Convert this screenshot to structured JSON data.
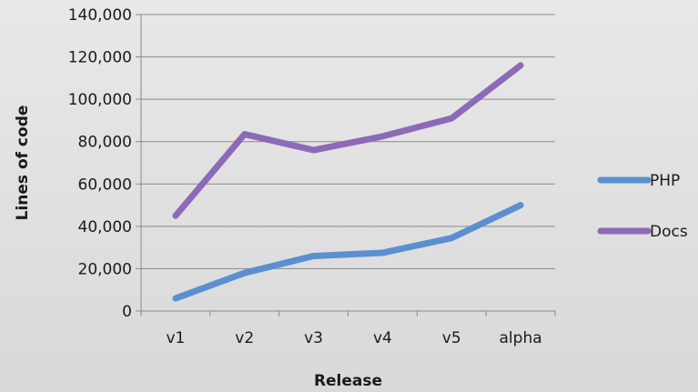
{
  "chart_data": {
    "type": "line",
    "title": "",
    "xlabel": "Release",
    "ylabel": "Lines of code",
    "categories": [
      "v1",
      "v2",
      "v3",
      "v4",
      "v5",
      "alpha"
    ],
    "ylim": [
      0,
      140000
    ],
    "yticks": [
      0,
      20000,
      40000,
      60000,
      80000,
      100000,
      120000,
      140000
    ],
    "ytick_labels": [
      "0",
      "20,000",
      "40,000",
      "60,000",
      "80,000",
      "100,000",
      "120,000",
      "140,000"
    ],
    "grid": true,
    "legend_position": "right",
    "series": [
      {
        "name": "PHP",
        "color": "#5b8fd0",
        "values": [
          6000,
          18000,
          26000,
          27500,
          34500,
          50000
        ]
      },
      {
        "name": "Docs",
        "color": "#8c6ab8",
        "values": [
          45000,
          83500,
          76000,
          82500,
          91000,
          116000
        ]
      }
    ]
  }
}
